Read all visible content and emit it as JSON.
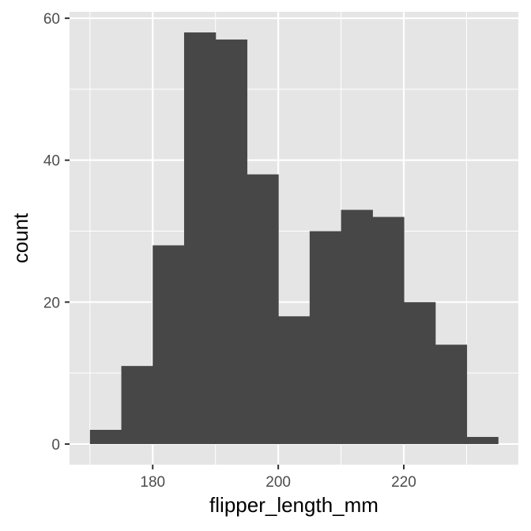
{
  "chart_data": {
    "type": "bar",
    "subtype": "histogram",
    "title": "",
    "xlabel": "flipper_length_mm",
    "ylabel": "count",
    "xlim": [
      166.75,
      238.25
    ],
    "ylim": [
      -2.9,
      60.9
    ],
    "x_ticks": [
      180,
      200,
      220
    ],
    "y_ticks": [
      0,
      20,
      40,
      60
    ],
    "bins": [
      {
        "x0": 170,
        "x1": 175,
        "count": 2
      },
      {
        "x0": 175,
        "x1": 180,
        "count": 11
      },
      {
        "x0": 180,
        "x1": 185,
        "count": 28
      },
      {
        "x0": 185,
        "x1": 190,
        "count": 58
      },
      {
        "x0": 190,
        "x1": 195,
        "count": 57
      },
      {
        "x0": 195,
        "x1": 200,
        "count": 38
      },
      {
        "x0": 200,
        "x1": 205,
        "count": 18
      },
      {
        "x0": 205,
        "x1": 210,
        "count": 30
      },
      {
        "x0": 210,
        "x1": 215,
        "count": 33
      },
      {
        "x0": 215,
        "x1": 220,
        "count": 32
      },
      {
        "x0": 220,
        "x1": 225,
        "count": 20
      },
      {
        "x0": 225,
        "x1": 230,
        "count": 14
      },
      {
        "x0": 230,
        "x1": 235,
        "count": 1
      }
    ],
    "grid": true,
    "colors": {
      "panel_background": "#e5e5e5",
      "grid_major": "#ffffff",
      "bar_fill": "#474747",
      "tick_text": "#4d4d4d",
      "axis_title": "#000000"
    }
  }
}
